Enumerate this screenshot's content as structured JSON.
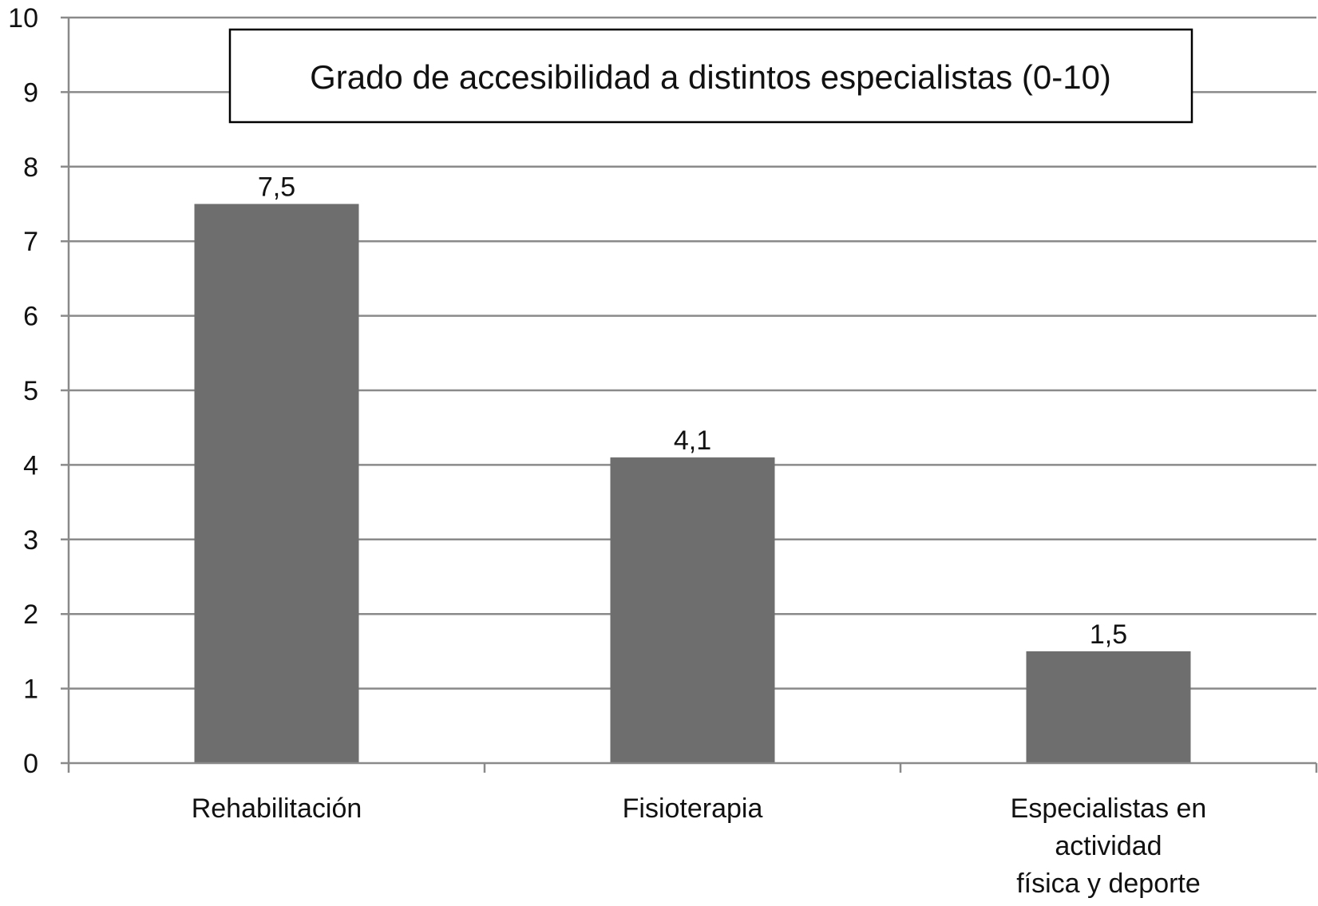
{
  "chart_data": {
    "type": "bar",
    "title": "Grado de accesibilidad a distintos especialistas (0-10)",
    "categories": [
      [
        "Rehabilitación"
      ],
      [
        "Fisioterapia"
      ],
      [
        "Especialistas en",
        "actividad",
        "física y deporte"
      ]
    ],
    "values": [
      7.5,
      4.1,
      1.5
    ],
    "data_labels": [
      "7,5",
      "4,1",
      "1,5"
    ],
    "ylim": [
      0,
      10
    ],
    "yticks": [
      0,
      1,
      2,
      3,
      4,
      5,
      6,
      7,
      8,
      9,
      10
    ],
    "ytick_labels": [
      "0",
      "1",
      "2",
      "3",
      "4",
      "5",
      "6",
      "7",
      "8",
      "9",
      "10"
    ],
    "grid": true,
    "legend": "none",
    "bar_color": "#6e6e6e"
  }
}
